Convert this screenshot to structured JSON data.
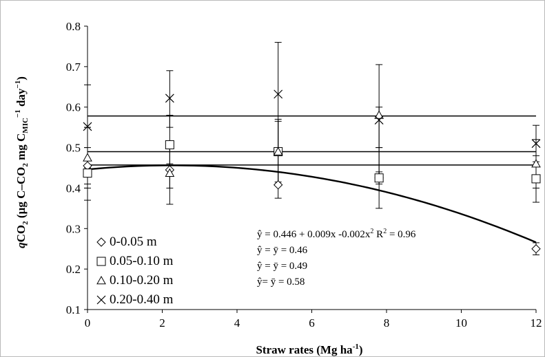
{
  "chart_data": {
    "type": "scatter",
    "xlabel": "Straw rates (Mg ha",
    "xlabel_sup": "-1",
    "xlabel_close": ")",
    "ylabel_parts": {
      "q": "q",
      "co2": "CO",
      "co2_sub": "2",
      "mid": " (µg C–CO",
      "mid_sub": "2",
      "mg": " mg C",
      "mic": "MIC",
      "sup1": "−1",
      "day": " day",
      "sup2": "−1",
      "end": ")"
    },
    "xlim": [
      0,
      12
    ],
    "ylim": [
      0.1,
      0.8
    ],
    "xticks": [
      0,
      2,
      4,
      6,
      8,
      10,
      12
    ],
    "xtick_labels": [
      "0",
      "2",
      "4",
      "6",
      "8",
      "10",
      "12"
    ],
    "yticks": [
      0.1,
      0.2,
      0.3,
      0.4,
      0.5,
      0.6,
      0.7,
      0.8
    ],
    "ytick_labels": [
      "0.1",
      "0.2",
      "0.3",
      "0.4",
      "0.5",
      "0.6",
      "0.7",
      "0.8"
    ],
    "grid": false,
    "legend_position": "bottom-left",
    "x": [
      0,
      2.2,
      5.1,
      7.8,
      12
    ],
    "series": [
      {
        "name": "0-0.05 m",
        "marker": "diamond",
        "values": [
          0.455,
          0.445,
          0.408,
          0.425,
          0.25
        ],
        "err_low": [
          0.41,
          0.43,
          0.375,
          0.41,
          0.235
        ],
        "err_high": [
          0.5,
          0.46,
          0.44,
          0.44,
          0.265
        ]
      },
      {
        "name": "0.05-0.10 m",
        "marker": "square",
        "values": [
          0.437,
          0.507,
          0.49,
          0.425,
          0.423
        ],
        "err_low": [
          0.37,
          0.4,
          0.415,
          0.35,
          0.365
        ],
        "err_high": [
          0.55,
          0.58,
          0.565,
          0.5,
          0.48
        ]
      },
      {
        "name": "0.10-0.20 m",
        "marker": "triangle",
        "values": [
          0.475,
          0.437,
          0.49,
          0.58,
          0.46
        ],
        "err_low": [
          0.4,
          0.36,
          0.41,
          0.5,
          0.4
        ],
        "err_high": [
          0.55,
          0.51,
          0.57,
          0.6,
          0.52
        ]
      },
      {
        "name": "0.20-0.40 m",
        "marker": "cross",
        "values": [
          0.552,
          0.622,
          0.632,
          0.568,
          0.51
        ],
        "err_low": [
          0.45,
          0.55,
          0.5,
          0.43,
          0.465
        ],
        "err_high": [
          0.655,
          0.69,
          0.76,
          0.705,
          0.555
        ]
      }
    ],
    "fits": [
      {
        "kind": "quadratic",
        "coef": [
          0.446,
          0.009,
          -0.002
        ],
        "xrange": [
          0,
          12
        ]
      },
      {
        "kind": "constant",
        "value": 0.457,
        "xrange": [
          0,
          12
        ]
      },
      {
        "kind": "constant",
        "value": 0.49,
        "xrange": [
          0,
          12
        ]
      },
      {
        "kind": "constant",
        "value": 0.578,
        "xrange": [
          0,
          12
        ]
      }
    ],
    "equations": [
      {
        "text": "ŷ = 0.446 + 0.009x -0.002x",
        "sup": "2",
        "r2_label": "   R",
        "r2_sup": "2",
        "r2_value": " = 0.96"
      },
      {
        "text": "ŷ = ȳ = 0.46"
      },
      {
        "text": "ŷ = ȳ = 0.49"
      },
      {
        "text": "ŷ= ȳ = 0.58"
      }
    ]
  },
  "colors": {
    "ink": "#000000",
    "frame": "#b9b9b9",
    "background": "#ffffff"
  }
}
